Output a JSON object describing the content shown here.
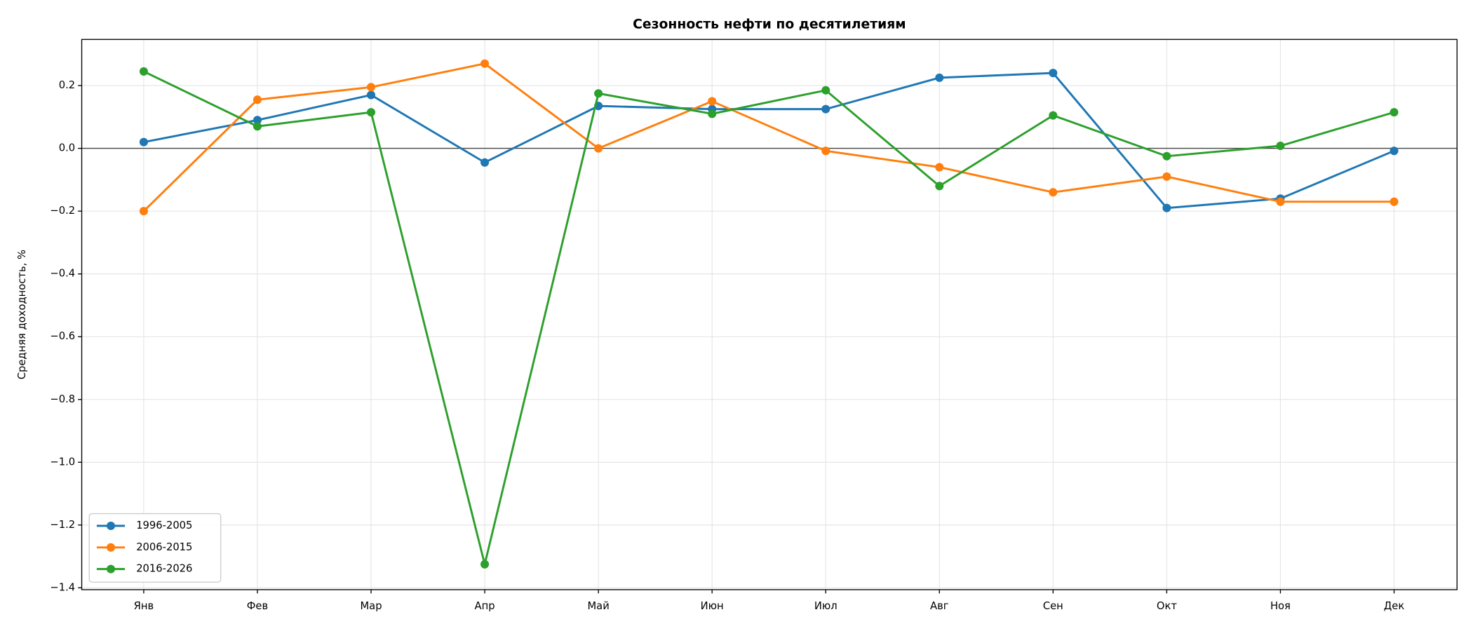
{
  "chart_data": {
    "type": "line",
    "title": "Сезонность нефти по десятилетиям",
    "y_label": "Средняя доходность, %",
    "categories": [
      "Янв",
      "Фев",
      "Мар",
      "Апр",
      "Май",
      "Июн",
      "Июл",
      "Авг",
      "Сен",
      "Окт",
      "Ноя",
      "Дек"
    ],
    "series": [
      {
        "name": "1996-2005",
        "color": "#1f77b4",
        "values": [
          0.02,
          0.09,
          0.17,
          -0.045,
          0.135,
          0.125,
          0.125,
          0.225,
          0.24,
          -0.19,
          -0.16,
          -0.008
        ]
      },
      {
        "name": "2006-2015",
        "color": "#ff7f0e",
        "values": [
          -0.2,
          0.155,
          0.195,
          0.27,
          0.0,
          0.15,
          -0.008,
          -0.06,
          -0.14,
          -0.09,
          -0.17,
          -0.17
        ]
      },
      {
        "name": "2016-2026",
        "color": "#2ca02c",
        "values": [
          0.245,
          0.07,
          0.115,
          -1.325,
          0.175,
          0.11,
          0.185,
          -0.12,
          0.105,
          -0.025,
          0.008,
          0.115
        ]
      }
    ],
    "ylim": [
      -1.406,
      0.347
    ],
    "yticks": [
      {
        "value": -1.4,
        "label": "−1.4"
      },
      {
        "value": -1.2,
        "label": "−1.2"
      },
      {
        "value": -1.0,
        "label": "−1.0"
      },
      {
        "value": -0.8,
        "label": "−0.8"
      },
      {
        "value": -0.6,
        "label": "−0.6"
      },
      {
        "value": -0.4,
        "label": "−0.4"
      },
      {
        "value": -0.2,
        "label": "−0.2"
      },
      {
        "value": 0,
        "label": "0.0"
      },
      0.2
    ],
    "grid": true,
    "zero_line": true,
    "legend": "lower left"
  }
}
